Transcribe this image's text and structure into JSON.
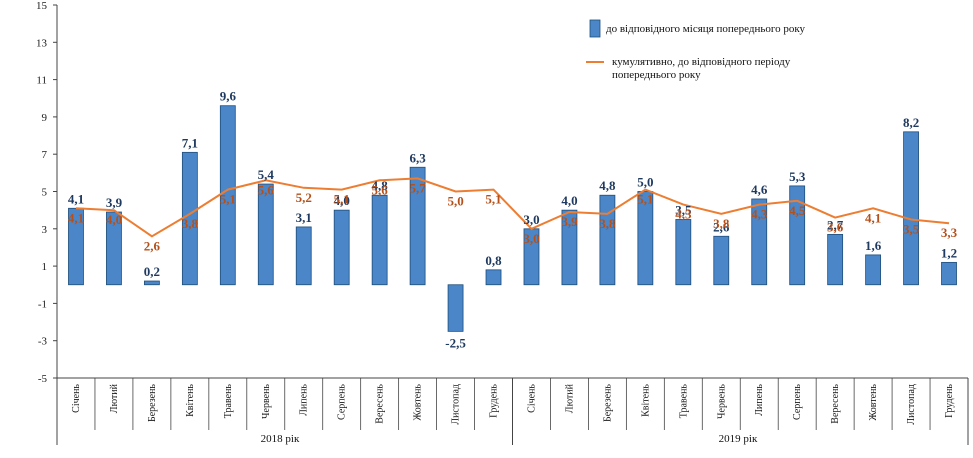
{
  "chart_data": {
    "type": "bar",
    "ylim": [
      -5,
      15
    ],
    "yticks": [
      -5,
      -3,
      -1,
      1,
      3,
      5,
      7,
      9,
      11,
      13,
      15
    ],
    "categories": [
      "Січень",
      "Лютий",
      "Березень",
      "Квітень",
      "Травень",
      "Червень",
      "Липень",
      "Серпень",
      "Вересень",
      "Жовтень",
      "Листопад",
      "Грудень",
      "Січень",
      "Лютий",
      "Березень",
      "Квітень",
      "Травень",
      "Червень",
      "Липень",
      "Серпень",
      "Вересень",
      "Жовтень",
      "Листопад",
      "Грудень"
    ],
    "groups": [
      {
        "label": "2018  рік"
      },
      {
        "label": "2019  рік"
      }
    ],
    "series": [
      {
        "name": "до відповідного  місяця попереднього року",
        "type": "bar",
        "color": "#4a86c8",
        "values": [
          4.1,
          3.9,
          0.2,
          7.1,
          9.6,
          5.4,
          3.1,
          4.0,
          4.8,
          6.3,
          -2.5,
          0.8,
          3.0,
          4.0,
          4.8,
          5.0,
          3.5,
          2.6,
          4.6,
          5.3,
          2.7,
          1.6,
          8.2,
          1.2
        ],
        "labels": [
          "4,1",
          "3,9",
          "0,2",
          "7,1",
          "9,6",
          "5,4",
          "3,1",
          "4,0",
          "4,8",
          "6,3",
          "-2,5",
          "0,8",
          "3,0",
          "4,0",
          "4,8",
          "5,0",
          "3,5",
          "2,6",
          "4,6",
          "5,3",
          "2,7",
          "1,6",
          "8,2",
          "1,2"
        ]
      },
      {
        "name": "кумулятивно, до відповідного  періоду попереднього  року",
        "type": "line",
        "color": "#ed7d31",
        "values": [
          4.1,
          4.0,
          2.6,
          3.8,
          5.1,
          5.6,
          5.2,
          5.1,
          5.6,
          5.7,
          5.0,
          5.1,
          3.0,
          3.9,
          3.8,
          5.1,
          4.3,
          3.8,
          4.3,
          4.5,
          3.6,
          4.1,
          3.5,
          3.3
        ],
        "labels": [
          "4,1",
          "4,0",
          "2,6",
          "3,8",
          "5,1",
          "5,6",
          "5,2",
          "5,1",
          "5,6",
          "5,7",
          "5,0",
          "5,1",
          "3,0",
          "3,9",
          "3,8",
          "5,1",
          "4,3",
          "3,8",
          "4,3",
          "4,5",
          "3,6",
          "4,1",
          "3,5",
          "3,3"
        ]
      }
    ],
    "legend": {
      "position": "top-right",
      "bar_text": "до відповідного  місяця попереднього року",
      "line_text_1": "кумулятивно, до відповідного  періоду",
      "line_text_2": "попереднього  року"
    },
    "grid": false
  }
}
